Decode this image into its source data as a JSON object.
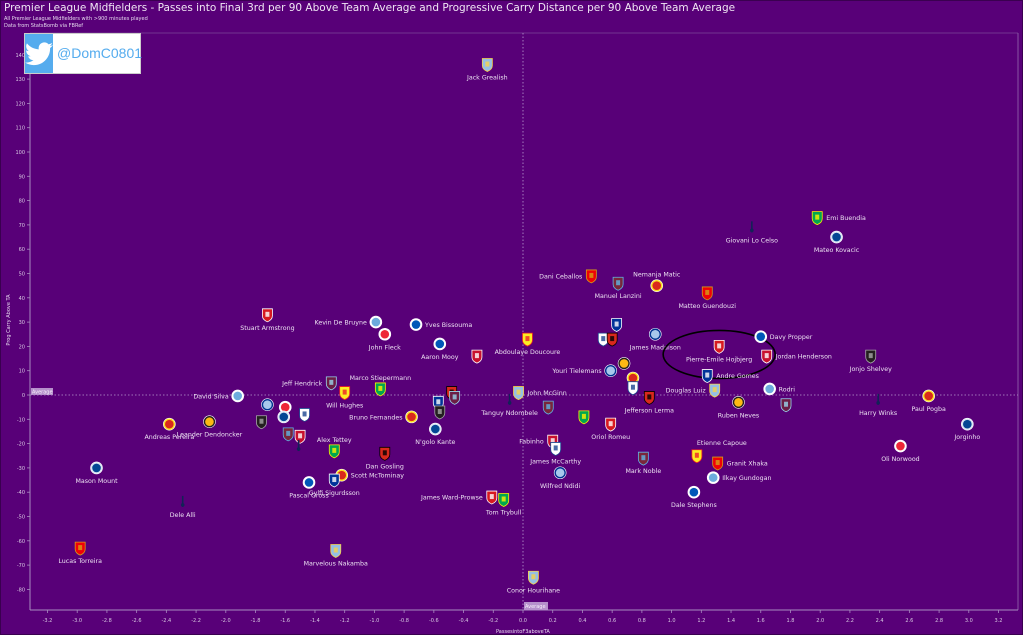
{
  "header": {
    "title": "Premier League Midfielders - Passes into Final 3rd per 90 Above Team Average and Progressive Carry Distance per 90 Above Team Average",
    "subtitle1": "All Premier League Midfielders with >900 minutes played",
    "subtitle2": "Data from StatsBomb via FBRef"
  },
  "twitter": {
    "icon": "twitter-bird-icon",
    "handle": "@DomC0801"
  },
  "colors": {
    "background": "#580078",
    "twitter_blue": "#55acee",
    "average_label": "#b690cc"
  },
  "chart_data": {
    "type": "scatter",
    "title": "Premier League Midfielders - Passes into Final 3rd per 90 Above Team Average and Progressive Carry Distance per 90 Above Team Average",
    "xlabel": "PassesintoF3aboveTA",
    "ylabel": "Prog Carry Above TA",
    "xlim": [
      -3.3,
      3.35
    ],
    "ylim": [
      -88,
      146
    ],
    "xticks": [
      -3.2,
      -3.0,
      -2.8,
      -2.6,
      -2.4,
      -2.2,
      -2.0,
      -1.8,
      -1.6,
      -1.4,
      -1.2,
      -1.0,
      -0.8,
      -0.6,
      -0.4,
      -0.2,
      0.0,
      0.2,
      0.4,
      0.6,
      0.8,
      1.0,
      1.2,
      1.4,
      1.6,
      1.8,
      2.0,
      2.2,
      2.4,
      2.6,
      2.8,
      3.0,
      3.2
    ],
    "yticks": [
      140,
      130,
      120,
      110,
      100,
      90,
      80,
      70,
      60,
      50,
      40,
      30,
      20,
      10,
      0,
      -10,
      -20,
      -30,
      -40,
      -50,
      -60,
      -70,
      -80
    ],
    "reference_lines": {
      "x": 0,
      "y": 0,
      "label": "Average"
    },
    "highlight": {
      "player": "Pierre-Emile Hojbjerg",
      "shape": "ellipse"
    },
    "points": [
      {
        "name": "Jack Grealish",
        "team": "Aston Villa",
        "x": -0.24,
        "y": 136,
        "lp": "below"
      },
      {
        "name": "Emi Buendia",
        "team": "Norwich",
        "x": 1.98,
        "y": 73,
        "lp": "right"
      },
      {
        "name": "Giovani Lo Celso",
        "team": "Tottenham",
        "x": 1.54,
        "y": 69,
        "lp": "below"
      },
      {
        "name": "Mateo Kovacic",
        "team": "Chelsea",
        "x": 2.11,
        "y": 65,
        "lp": "below"
      },
      {
        "name": "Dani Ceballos",
        "team": "Arsenal",
        "x": 0.46,
        "y": 49,
        "lp": "left"
      },
      {
        "name": "Manuel Lanzini",
        "team": "West Ham",
        "x": 0.64,
        "y": 46,
        "lp": "below"
      },
      {
        "name": "Nemanja Matic",
        "team": "Man Utd",
        "x": 0.9,
        "y": 45,
        "lp": "above"
      },
      {
        "name": "Matteo Guendouzi",
        "team": "Arsenal",
        "x": 1.24,
        "y": 42,
        "lp": "below"
      },
      {
        "name": "Stuart Armstrong",
        "team": "Southampton",
        "x": -1.72,
        "y": 33,
        "lp": "below"
      },
      {
        "name": "Kevin De Bruyne",
        "team": "Man City",
        "x": -0.99,
        "y": 30,
        "lp": "left"
      },
      {
        "name": "Yves Bissouma",
        "team": "Brighton",
        "x": -0.72,
        "y": 29,
        "lp": "right"
      },
      {
        "name": "John Fleck",
        "team": "Sheffield Utd",
        "x": -0.93,
        "y": 25,
        "lp": "below"
      },
      {
        "name": "Aaron Mooy",
        "team": "Brighton",
        "x": -0.56,
        "y": 21,
        "lp": "below"
      },
      {
        "name": "",
        "team": "Liverpool",
        "x": -0.31,
        "y": 16,
        "lp": "none"
      },
      {
        "name": "Abdoulaye Doucoure",
        "team": "Watford",
        "x": 0.03,
        "y": 23,
        "lp": "below"
      },
      {
        "name": "",
        "team": "Everton",
        "x": 0.63,
        "y": 29,
        "lp": "none"
      },
      {
        "name": "",
        "team": "Crystal Palace",
        "x": 0.54,
        "y": 23,
        "lp": "none"
      },
      {
        "name": "",
        "team": "Bournemouth",
        "x": 0.6,
        "y": 23,
        "lp": "none"
      },
      {
        "name": "James Maddison",
        "team": "Leicester",
        "x": 0.89,
        "y": 25,
        "lp": "below"
      },
      {
        "name": "Pierre-Emile Hojbjerg",
        "team": "Southampton",
        "x": 1.32,
        "y": 20,
        "lp": "below"
      },
      {
        "name": "Davy Propper",
        "team": "Brighton",
        "x": 1.6,
        "y": 24,
        "lp": "right"
      },
      {
        "name": "Jordan Henderson",
        "team": "Liverpool",
        "x": 1.64,
        "y": 16,
        "lp": "right"
      },
      {
        "name": "Jonjo Shelvey",
        "team": "Newcastle",
        "x": 2.34,
        "y": 16,
        "lp": "below"
      },
      {
        "name": "Youri Tielemans",
        "team": "Leicester",
        "x": 0.59,
        "y": 10,
        "lp": "left"
      },
      {
        "name": "",
        "team": "Wolves",
        "x": 0.68,
        "y": 13,
        "lp": "none"
      },
      {
        "name": "",
        "team": "Man Utd",
        "x": 0.74,
        "y": 7,
        "lp": "none"
      },
      {
        "name": "",
        "team": "Crystal Palace",
        "x": 0.74,
        "y": 3,
        "lp": "none"
      },
      {
        "name": "Andre Gomes",
        "team": "Everton",
        "x": 1.24,
        "y": 8,
        "lp": "right"
      },
      {
        "name": "Douglas Luiz",
        "team": "Aston Villa",
        "x": 1.29,
        "y": 2,
        "lp": "left"
      },
      {
        "name": "Rodri",
        "team": "Man City",
        "x": 1.66,
        "y": 2.5,
        "lp": "right"
      },
      {
        "name": "Jefferson Lerma",
        "team": "Bournemouth",
        "x": 0.85,
        "y": -1,
        "lp": "below"
      },
      {
        "name": "Ruben Neves",
        "team": "Wolves",
        "x": 1.45,
        "y": -3,
        "lp": "below"
      },
      {
        "name": "",
        "team": "Burnley",
        "x": 1.77,
        "y": -4,
        "lp": "none"
      },
      {
        "name": "Harry Winks",
        "team": "Tottenham",
        "x": 2.39,
        "y": -2,
        "lp": "below"
      },
      {
        "name": "Paul Pogba",
        "team": "Man Utd",
        "x": 2.73,
        "y": -0.4,
        "lp": "below"
      },
      {
        "name": "Jorginho",
        "team": "Chelsea",
        "x": 2.99,
        "y": -12,
        "lp": "below"
      },
      {
        "name": "Oli Norwood",
        "team": "Sheffield Utd",
        "x": 2.54,
        "y": -21,
        "lp": "below"
      },
      {
        "name": "Jeff Hendrick",
        "team": "Burnley",
        "x": -1.29,
        "y": 5,
        "lp": "left"
      },
      {
        "name": "Will Hughes",
        "team": "Watford",
        "x": -1.2,
        "y": 1,
        "lp": "below"
      },
      {
        "name": "Marco Stiepermann",
        "team": "Norwich",
        "x": -0.96,
        "y": 2.5,
        "lp": "above"
      },
      {
        "name": "David Silva",
        "team": "Man City",
        "x": -1.92,
        "y": -0.4,
        "lp": "left"
      },
      {
        "name": "Andreas Pereira",
        "team": "Man Utd",
        "x": -2.38,
        "y": -12,
        "lp": "below"
      },
      {
        "name": "Leander Dendoncker",
        "team": "Wolves",
        "x": -2.11,
        "y": -11,
        "lp": "below"
      },
      {
        "name": "",
        "team": "Leicester",
        "x": -1.72,
        "y": -4,
        "lp": "none"
      },
      {
        "name": "",
        "team": "Sheffield Utd",
        "x": -1.6,
        "y": -5,
        "lp": "none"
      },
      {
        "name": "",
        "team": "Newcastle",
        "x": -1.76,
        "y": -11,
        "lp": "none"
      },
      {
        "name": "",
        "team": "Chelsea",
        "x": -1.61,
        "y": -9,
        "lp": "none"
      },
      {
        "name": "",
        "team": "Crystal Palace",
        "x": -1.47,
        "y": -8,
        "lp": "none"
      },
      {
        "name": "",
        "team": "West Ham",
        "x": -1.58,
        "y": -16,
        "lp": "none"
      },
      {
        "name": "",
        "team": "Liverpool",
        "x": -1.5,
        "y": -17,
        "lp": "none"
      },
      {
        "name": "",
        "team": "Tottenham",
        "x": -1.51,
        "y": -21,
        "lp": "none"
      },
      {
        "name": "Mason Mount",
        "team": "Chelsea",
        "x": -2.87,
        "y": -30,
        "lp": "below"
      },
      {
        "name": "Dele Alli",
        "team": "Tottenham",
        "x": -2.29,
        "y": -44,
        "lp": "below"
      },
      {
        "name": "Lucas Torreira",
        "team": "Arsenal",
        "x": -2.98,
        "y": -63,
        "lp": "below"
      },
      {
        "name": "Marvelous Nakamba",
        "team": "Aston Villa",
        "x": -1.26,
        "y": -64,
        "lp": "below"
      },
      {
        "name": "Conor Hourihane",
        "team": "Aston Villa",
        "x": 0.07,
        "y": -75,
        "lp": "below"
      },
      {
        "name": "Bruno Fernandes",
        "team": "Man Utd",
        "x": -0.75,
        "y": -9,
        "lp": "left"
      },
      {
        "name": "N'golo Kante",
        "team": "Chelsea",
        "x": -0.59,
        "y": -14,
        "lp": "below"
      },
      {
        "name": "",
        "team": "Everton",
        "x": -0.57,
        "y": -3,
        "lp": "none"
      },
      {
        "name": "",
        "team": "Newcastle",
        "x": -0.56,
        "y": -7,
        "lp": "none"
      },
      {
        "name": "",
        "team": "Bournemouth",
        "x": -0.48,
        "y": 1,
        "lp": "none"
      },
      {
        "name": "",
        "team": "Burnley",
        "x": -0.46,
        "y": -1,
        "lp": "none"
      },
      {
        "name": "Alex Tettey",
        "team": "Norwich",
        "x": -1.27,
        "y": -23,
        "lp": "above"
      },
      {
        "name": "Dan Gosling",
        "team": "Bournemouth",
        "x": -0.93,
        "y": -24,
        "lp": "below"
      },
      {
        "name": "Scott McTominay",
        "team": "Man Utd",
        "x": -1.22,
        "y": -33,
        "lp": "right"
      },
      {
        "name": "Gylfi Sigurdsson",
        "team": "Everton",
        "x": -1.27,
        "y": -35,
        "lp": "below"
      },
      {
        "name": "Pascal Gross",
        "team": "Brighton",
        "x": -1.44,
        "y": -36,
        "lp": "below"
      },
      {
        "name": "James Ward-Prowse",
        "team": "Southampton",
        "x": -0.21,
        "y": -42,
        "lp": "left"
      },
      {
        "name": "Tom Trybull",
        "team": "Norwich",
        "x": -0.13,
        "y": -43,
        "lp": "below"
      },
      {
        "name": "Tanguy Ndombele",
        "team": "Tottenham",
        "x": -0.09,
        "y": -2,
        "lp": "below"
      },
      {
        "name": "John McGinn",
        "team": "Aston Villa",
        "x": -0.03,
        "y": 1,
        "lp": "right"
      },
      {
        "name": "",
        "team": "West Ham",
        "x": 0.17,
        "y": -5,
        "lp": "none"
      },
      {
        "name": "",
        "team": "Norwich",
        "x": 0.41,
        "y": -9,
        "lp": "none"
      },
      {
        "name": "Fabinho",
        "team": "Liverpool",
        "x": 0.2,
        "y": -19,
        "lp": "left"
      },
      {
        "name": "James McCarthy",
        "team": "Crystal Palace",
        "x": 0.22,
        "y": -22,
        "lp": "below"
      },
      {
        "name": "Wilfred Ndidi",
        "team": "Leicester",
        "x": 0.25,
        "y": -32,
        "lp": "below"
      },
      {
        "name": "Oriol Romeu",
        "team": "Southampton",
        "x": 0.59,
        "y": -12,
        "lp": "below"
      },
      {
        "name": "Mark Noble",
        "team": "West Ham",
        "x": 0.81,
        "y": -26,
        "lp": "below"
      },
      {
        "name": "Etienne Capoue",
        "team": "Watford",
        "x": 1.17,
        "y": -25,
        "lp": "above-right"
      },
      {
        "name": "Granit Xhaka",
        "team": "Arsenal",
        "x": 1.31,
        "y": -28,
        "lp": "right"
      },
      {
        "name": "Ilkay Gundogan",
        "team": "Man City",
        "x": 1.28,
        "y": -34,
        "lp": "right"
      },
      {
        "name": "Dale Stephens",
        "team": "Brighton",
        "x": 1.15,
        "y": -40,
        "lp": "below"
      }
    ]
  }
}
